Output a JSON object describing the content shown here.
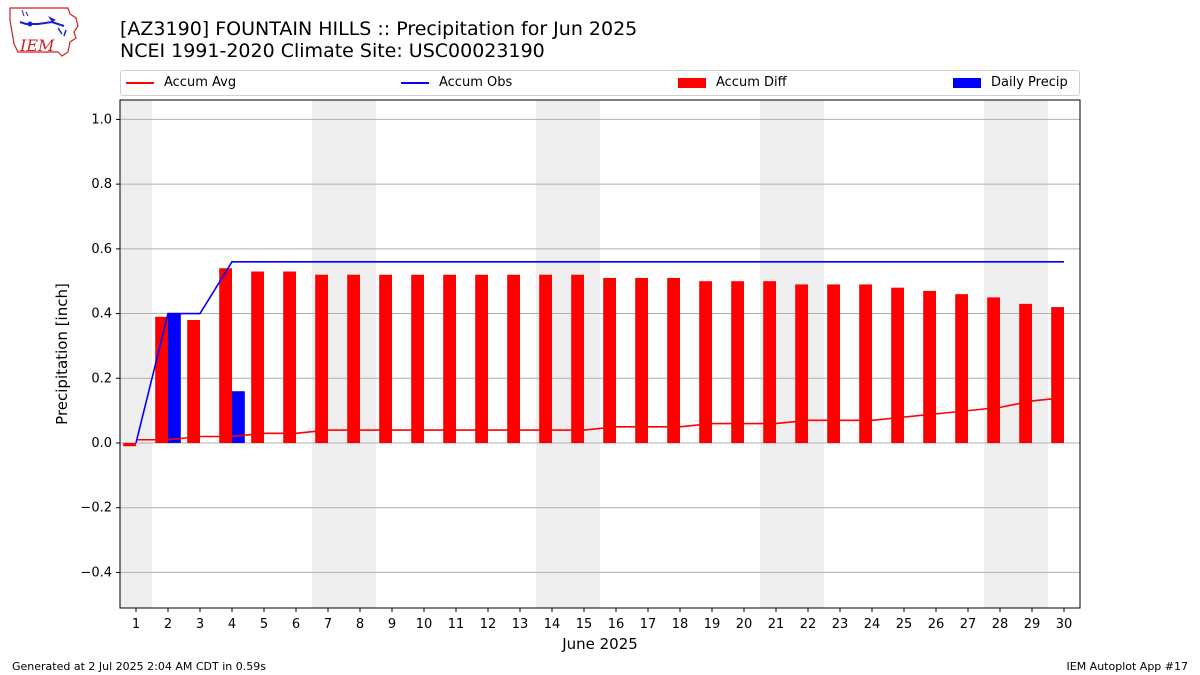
{
  "header": {
    "title_line1": "[AZ3190] FOUNTAIN HILLS :: Precipitation for Jun 2025",
    "title_line2": "NCEI 1991-2020 Climate Site: USC00023190",
    "logo_text": "IEM"
  },
  "footer": {
    "left": "Generated at 2 Jul 2025 2:04 AM CDT in 0.59s",
    "right": "IEM Autoplot App #17"
  },
  "chart_data": {
    "type": "bar",
    "xlabel": "June 2025",
    "ylabel": "Precipitation [inch]",
    "ylim": [
      -0.51,
      1.06
    ],
    "yticks": [
      -0.4,
      -0.2,
      0.0,
      0.2,
      0.4,
      0.6,
      0.8,
      1.0
    ],
    "ytick_labels": [
      "−0.4",
      "−0.2",
      "0.0",
      "0.2",
      "0.4",
      "0.6",
      "0.8",
      "1.0"
    ],
    "grid": true,
    "legend_placement": "top, above plot",
    "days": [
      1,
      2,
      3,
      4,
      5,
      6,
      7,
      8,
      9,
      10,
      11,
      12,
      13,
      14,
      15,
      16,
      17,
      18,
      19,
      20,
      21,
      22,
      23,
      24,
      25,
      26,
      27,
      28,
      29,
      30
    ],
    "weekend_shading": [
      [
        1,
        1
      ],
      [
        7,
        8
      ],
      [
        14,
        15
      ],
      [
        21,
        22
      ],
      [
        28,
        29
      ]
    ],
    "series": [
      {
        "name": "Accum Avg",
        "kind": "line",
        "color": "#ff0000",
        "values": [
          0.01,
          0.01,
          0.02,
          0.02,
          0.03,
          0.03,
          0.04,
          0.04,
          0.04,
          0.04,
          0.04,
          0.04,
          0.04,
          0.04,
          0.04,
          0.05,
          0.05,
          0.05,
          0.06,
          0.06,
          0.06,
          0.07,
          0.07,
          0.07,
          0.08,
          0.09,
          0.1,
          0.11,
          0.13,
          0.14
        ]
      },
      {
        "name": "Accum Obs",
        "kind": "line",
        "color": "#0000ff",
        "values": [
          0.0,
          0.4,
          0.4,
          0.56,
          0.56,
          0.56,
          0.56,
          0.56,
          0.56,
          0.56,
          0.56,
          0.56,
          0.56,
          0.56,
          0.56,
          0.56,
          0.56,
          0.56,
          0.56,
          0.56,
          0.56,
          0.56,
          0.56,
          0.56,
          0.56,
          0.56,
          0.56,
          0.56,
          0.56,
          0.56
        ]
      },
      {
        "name": "Accum Diff",
        "kind": "bar",
        "color": "#ff0000",
        "values": [
          -0.01,
          0.39,
          0.38,
          0.54,
          0.53,
          0.53,
          0.52,
          0.52,
          0.52,
          0.52,
          0.52,
          0.52,
          0.52,
          0.52,
          0.52,
          0.51,
          0.51,
          0.51,
          0.5,
          0.5,
          0.5,
          0.49,
          0.49,
          0.49,
          0.48,
          0.47,
          0.46,
          0.45,
          0.43,
          0.42
        ]
      },
      {
        "name": "Daily Precip",
        "kind": "bar",
        "color": "#0000ff",
        "values": [
          0.0,
          0.4,
          0.0,
          0.16,
          0.0,
          0.0,
          0.0,
          0.0,
          0.0,
          0.0,
          0.0,
          0.0,
          0.0,
          0.0,
          0.0,
          0.0,
          0.0,
          0.0,
          0.0,
          0.0,
          0.0,
          0.0,
          0.0,
          0.0,
          0.0,
          0.0,
          0.0,
          0.0,
          0.0,
          0.0
        ]
      }
    ]
  }
}
